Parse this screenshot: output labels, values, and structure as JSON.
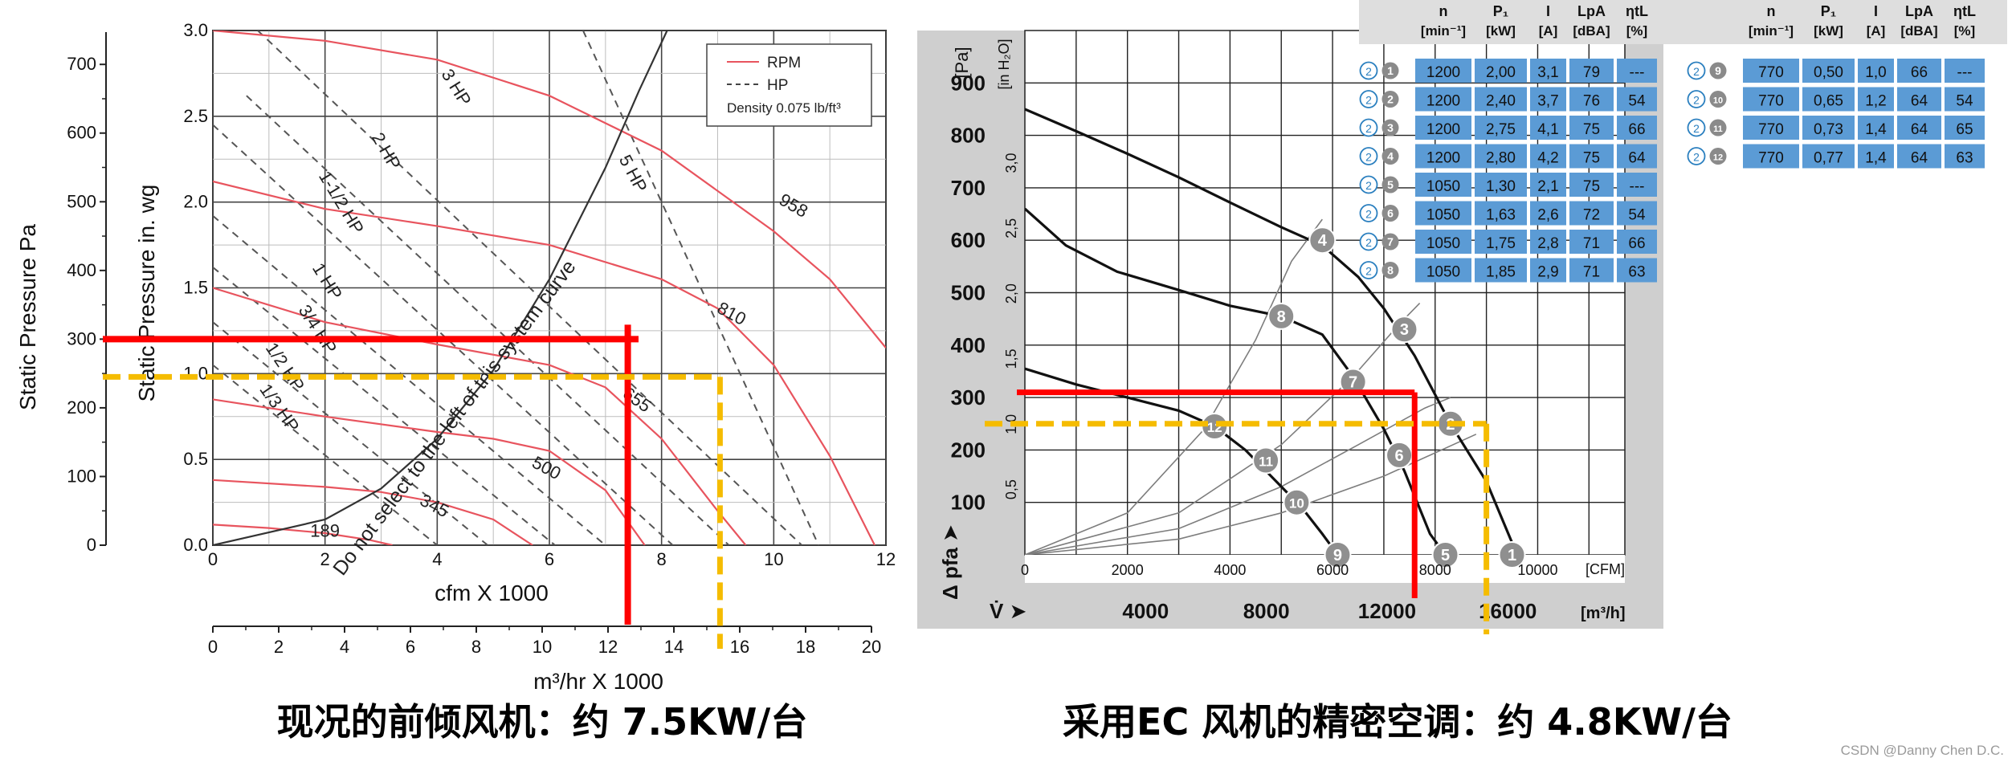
{
  "captions": {
    "left": "现况的前倾风机：约 7.5KW/台",
    "right": "采用EC 风机的精密空调：约 4.8KW/台",
    "watermark": "CSDN @Danny Chen D.C."
  },
  "colors": {
    "rpm": "#e8545e",
    "hp": "#555555",
    "current": "#ff0000",
    "target": "#f5bc00",
    "table_cell": "#5b9bd5",
    "table_header": "#dedede",
    "badge": "#8f8f8f"
  },
  "chart_data": [
    {
      "type": "line",
      "title": "",
      "xlabel": "cfm X 1000",
      "ylabel": "Static Pressure in. wg",
      "xlim": [
        0,
        12
      ],
      "ylim": [
        0,
        3
      ],
      "x_ticks": [
        "0",
        "2",
        "4",
        "6",
        "8",
        "10",
        "12"
      ],
      "y_ticks": [
        "0.0",
        "0.5",
        "1.0",
        "1.5",
        "2.0",
        "2.5",
        "3.0"
      ],
      "x2_label": "m³/hr X 1000",
      "x2_ticks": [
        "0",
        "2",
        "4",
        "6",
        "8",
        "10",
        "12",
        "14",
        "16",
        "18",
        "20"
      ],
      "y2_label": "Static Pressure Pa",
      "y2_ticks": [
        "0",
        "100",
        "200",
        "300",
        "400",
        "500",
        "600",
        "700"
      ],
      "legend": {
        "position": "top-right",
        "rpm": "RPM",
        "hp": "HP",
        "density": "Density 0.075 lb/ft³"
      },
      "rpm_curves": [
        {
          "label": "958",
          "points": [
            [
              0,
              3.0
            ],
            [
              2,
              2.94
            ],
            [
              4,
              2.83
            ],
            [
              6,
              2.62
            ],
            [
              8,
              2.3
            ],
            [
              10,
              1.83
            ],
            [
              11,
              1.55
            ],
            [
              12,
              1.15
            ]
          ]
        },
        {
          "label": "810",
          "points": [
            [
              0,
              2.12
            ],
            [
              2,
              1.96
            ],
            [
              4,
              1.86
            ],
            [
              6,
              1.75
            ],
            [
              8,
              1.55
            ],
            [
              9,
              1.38
            ],
            [
              10,
              1.05
            ],
            [
              11,
              0.52
            ],
            [
              11.8,
              0.0
            ]
          ]
        },
        {
          "label": "655",
          "points": [
            [
              0,
              1.5
            ],
            [
              2,
              1.3
            ],
            [
              4,
              1.17
            ],
            [
              6,
              1.05
            ],
            [
              7,
              0.92
            ],
            [
              8,
              0.62
            ],
            [
              9,
              0.2
            ],
            [
              9.5,
              0.0
            ]
          ]
        },
        {
          "label": "500",
          "points": [
            [
              0,
              0.85
            ],
            [
              2,
              0.75
            ],
            [
              4,
              0.66
            ],
            [
              5,
              0.62
            ],
            [
              6,
              0.55
            ],
            [
              7,
              0.32
            ],
            [
              7.7,
              0.0
            ]
          ]
        },
        {
          "label": "345",
          "points": [
            [
              0,
              0.38
            ],
            [
              2,
              0.34
            ],
            [
              3,
              0.31
            ],
            [
              4,
              0.25
            ],
            [
              5,
              0.15
            ],
            [
              5.7,
              0.0
            ]
          ]
        },
        {
          "label": "189",
          "points": [
            [
              0,
              0.12
            ],
            [
              1,
              0.1
            ],
            [
              2,
              0.07
            ],
            [
              2.8,
              0.03
            ],
            [
              3.2,
              0.0
            ]
          ]
        }
      ],
      "hp_lines": [
        {
          "label": "3 HP",
          "points": [
            [
              0.8,
              3.0
            ],
            [
              10.5,
              0.0
            ]
          ]
        },
        {
          "label": "5 HP",
          "points": [
            [
              6.6,
              3.0
            ],
            [
              10.8,
              0.0
            ]
          ]
        },
        {
          "label": "2 HP",
          "points": [
            [
              0.6,
              2.62
            ],
            [
              9.2,
              0.0
            ]
          ]
        },
        {
          "label": "1-1/2 HP",
          "points": [
            [
              0,
              2.45
            ],
            [
              8.2,
              0.0
            ]
          ]
        },
        {
          "label": "1 HP",
          "points": [
            [
              0,
              1.92
            ],
            [
              7.0,
              0.0
            ]
          ]
        },
        {
          "label": "3/4 HP",
          "points": [
            [
              0,
              1.62
            ],
            [
              6.1,
              0.0
            ]
          ]
        },
        {
          "label": "1/2 HP",
          "points": [
            [
              0,
              1.3
            ],
            [
              4.9,
              0.0
            ]
          ]
        },
        {
          "label": "1/3 HP",
          "points": [
            [
              0,
              1.05
            ],
            [
              4.0,
              0.0
            ]
          ]
        }
      ],
      "system_curve": {
        "label": "Do not select to the left of this system curve",
        "points": [
          [
            0,
            0
          ],
          [
            2,
            0.15
          ],
          [
            3,
            0.33
          ],
          [
            4,
            0.62
          ],
          [
            5,
            1.02
          ],
          [
            6,
            1.55
          ],
          [
            7,
            2.2
          ],
          [
            7.6,
            2.65
          ],
          [
            8.1,
            3.0
          ]
        ]
      },
      "markers": {
        "current": {
          "x": 7.4,
          "y": 1.2,
          "x_m3h": 12.6,
          "y_pa": 300
        },
        "target": {
          "x": 9.1,
          "y": 0.98,
          "x_m3h": 15.4,
          "y_pa": 245
        }
      }
    },
    {
      "type": "line",
      "title": "",
      "xlabel": "[CFM]",
      "ylabel": "[Pa]",
      "xlim": [
        0,
        11700
      ],
      "ylim": [
        0,
        1000
      ],
      "x_ticks": [
        "0",
        "2000",
        "4000",
        "6000",
        "8000",
        "10000"
      ],
      "y_ticks": [
        "100",
        "200",
        "300",
        "400",
        "500",
        "600",
        "700",
        "800",
        "900"
      ],
      "inh2o_label": "[in H₂O]",
      "inh2o_ticks": [
        "0,5",
        "1,0",
        "1,5",
        "2,0",
        "2,5",
        "3,0"
      ],
      "dp_label": "Δ pfa ➤",
      "x2_label": "V̇ ➤",
      "x2_unit": "[m³/h]",
      "x2_ticks": [
        "4000",
        "8000",
        "12000",
        "16000"
      ],
      "fan_curves": [
        {
          "points": [
            [
              0,
              850
            ],
            [
              1000,
              808
            ],
            [
              2000,
              765
            ],
            [
              3000,
              720
            ],
            [
              4000,
              672
            ],
            [
              5000,
              625
            ],
            [
              5800,
              590
            ],
            [
              6500,
              530
            ],
            [
              7000,
              470
            ],
            [
              7600,
              380
            ],
            [
              8300,
              250
            ],
            [
              9000,
              140
            ],
            [
              9600,
              0
            ]
          ]
        },
        {
          "points": [
            [
              0,
              660
            ],
            [
              800,
              590
            ],
            [
              1800,
              540
            ],
            [
              3000,
              505
            ],
            [
              4000,
              475
            ],
            [
              5000,
              455
            ],
            [
              5800,
              420
            ],
            [
              6400,
              340
            ],
            [
              7000,
              240
            ],
            [
              7400,
              160
            ],
            [
              7900,
              40
            ],
            [
              8200,
              0
            ]
          ]
        },
        {
          "points": [
            [
              0,
              355
            ],
            [
              1000,
              325
            ],
            [
              2000,
              300
            ],
            [
              3000,
              275
            ],
            [
              3700,
              245
            ],
            [
              4300,
              200
            ],
            [
              4800,
              150
            ],
            [
              5400,
              90
            ],
            [
              5800,
              40
            ],
            [
              6100,
              0
            ]
          ]
        }
      ],
      "system_curves": [
        {
          "points": [
            [
              0,
              0
            ],
            [
              2000,
              80
            ],
            [
              3500,
              240
            ],
            [
              4500,
              410
            ],
            [
              5200,
              560
            ],
            [
              5800,
              640
            ]
          ]
        },
        {
          "points": [
            [
              0,
              0
            ],
            [
              3000,
              80
            ],
            [
              5000,
              210
            ],
            [
              6400,
              340
            ],
            [
              7300,
              440
            ],
            [
              7700,
              480
            ]
          ]
        },
        {
          "points": [
            [
              0,
              0
            ],
            [
              3000,
              50
            ],
            [
              5000,
              130
            ],
            [
              6500,
              210
            ],
            [
              7800,
              280
            ],
            [
              8300,
              300
            ]
          ]
        },
        {
          "points": [
            [
              0,
              0
            ],
            [
              3000,
              30
            ],
            [
              5000,
              80
            ],
            [
              7000,
              150
            ],
            [
              8800,
              230
            ]
          ]
        }
      ],
      "points": [
        {
          "n": "1",
          "x": 9500,
          "y": 0
        },
        {
          "n": "2",
          "x": 8300,
          "y": 250
        },
        {
          "n": "3",
          "x": 7400,
          "y": 430
        },
        {
          "n": "4",
          "x": 5800,
          "y": 600
        },
        {
          "n": "5",
          "x": 8200,
          "y": 0
        },
        {
          "n": "6",
          "x": 7300,
          "y": 190
        },
        {
          "n": "7",
          "x": 6400,
          "y": 330
        },
        {
          "n": "8",
          "x": 5000,
          "y": 455
        },
        {
          "n": "9",
          "x": 6100,
          "y": 0
        },
        {
          "n": "10",
          "x": 5300,
          "y": 100
        },
        {
          "n": "11",
          "x": 4700,
          "y": 180
        },
        {
          "n": "12",
          "x": 3700,
          "y": 245
        }
      ],
      "markers": {
        "current": {
          "x": 7600,
          "y": 310
        },
        "target": {
          "x": 9000,
          "y": 250
        }
      }
    }
  ],
  "fan_table": {
    "headers": [
      {
        "main": "n",
        "unit": "[min⁻¹]"
      },
      {
        "main": "P₁",
        "unit": "[kW]"
      },
      {
        "main": "I",
        "unit": "[A]"
      },
      {
        "main": "LpA",
        "unit": "[dBA]"
      },
      {
        "main": "ηtL",
        "unit": "[%]"
      }
    ],
    "left_rows": [
      {
        "badge": "2",
        "n": "1",
        "values": [
          "1200",
          "2,00",
          "3,1",
          "79",
          "---"
        ]
      },
      {
        "badge": "2",
        "n": "2",
        "values": [
          "1200",
          "2,40",
          "3,7",
          "76",
          "54"
        ]
      },
      {
        "badge": "2",
        "n": "3",
        "values": [
          "1200",
          "2,75",
          "4,1",
          "75",
          "66"
        ]
      },
      {
        "badge": "2",
        "n": "4",
        "values": [
          "1200",
          "2,80",
          "4,2",
          "75",
          "64"
        ]
      },
      {
        "badge": "2",
        "n": "5",
        "values": [
          "1050",
          "1,30",
          "2,1",
          "75",
          "---"
        ]
      },
      {
        "badge": "2",
        "n": "6",
        "values": [
          "1050",
          "1,63",
          "2,6",
          "72",
          "54"
        ]
      },
      {
        "badge": "2",
        "n": "7",
        "values": [
          "1050",
          "1,75",
          "2,8",
          "71",
          "66"
        ]
      },
      {
        "badge": "2",
        "n": "8",
        "values": [
          "1050",
          "1,85",
          "2,9",
          "71",
          "63"
        ]
      }
    ],
    "right_rows": [
      {
        "badge": "2",
        "n": "9",
        "values": [
          "770",
          "0,50",
          "1,0",
          "66",
          "---"
        ]
      },
      {
        "badge": "2",
        "n": "10",
        "values": [
          "770",
          "0,65",
          "1,2",
          "64",
          "54"
        ]
      },
      {
        "badge": "2",
        "n": "11",
        "values": [
          "770",
          "0,73",
          "1,4",
          "64",
          "65"
        ]
      },
      {
        "badge": "2",
        "n": "12",
        "values": [
          "770",
          "0,77",
          "1,4",
          "64",
          "63"
        ]
      }
    ]
  }
}
